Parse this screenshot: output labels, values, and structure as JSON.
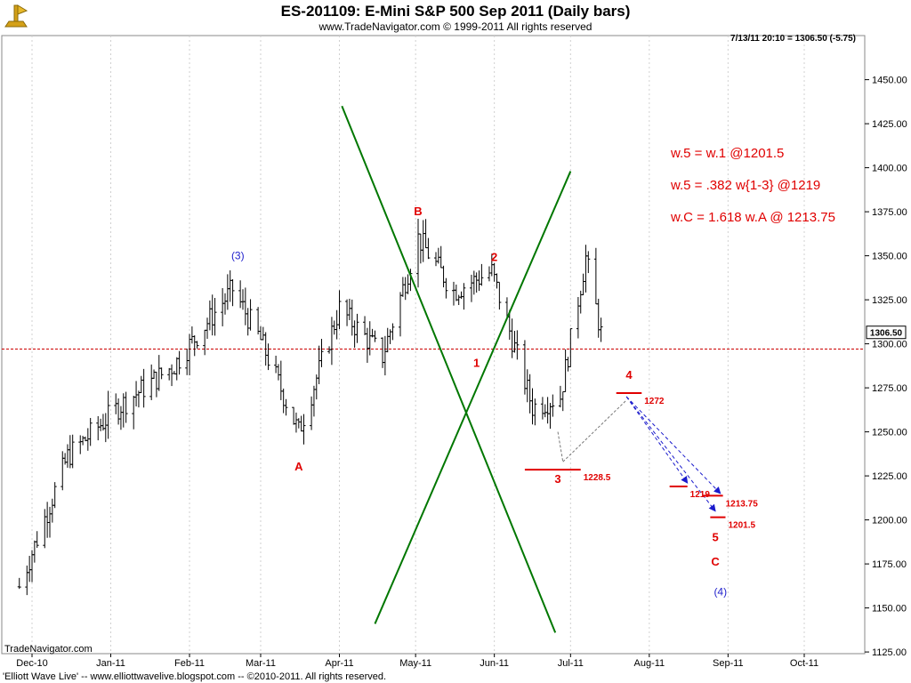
{
  "header": {
    "title": "ES-201109:  E-Mini S&P 500 Sep 2011  (Daily bars)",
    "copyright": "www.TradeNavigator.com © 1999-2011 All rights reserved",
    "readout": "7/13/11 20:10 = 1306.50 (-5.75)"
  },
  "footer": {
    "brand": "TradeNavigator.com",
    "credit": "'Elliott Wave Live' -- www.elliottwavelive.blogspot.com -- ©2010-2011. All rights reserved."
  },
  "colors": {
    "red": "#e00000",
    "green": "#007700",
    "blue": "#1a1acc",
    "bars": "#000000"
  },
  "chart_data": {
    "type": "bar",
    "title": "ES-201109:  E-Mini S&P 500 Sep 2011  (Daily bars)",
    "ylim": [
      1110,
      1460
    ],
    "y_ticks": [
      1125,
      1150,
      1175,
      1200,
      1225,
      1250,
      1275,
      1300,
      1325,
      1350,
      1375,
      1400,
      1425,
      1450
    ],
    "y_tick_labels": [
      "1125.00",
      "1150.00",
      "1175.00",
      "1200.00",
      "1225.00",
      "1250.00",
      "1275.00",
      "1300.00",
      "1325.00",
      "1350.00",
      "1375.00",
      "1400.00",
      "1425.00",
      "1450.00"
    ],
    "x_ticks": [
      {
        "label": "Dec-10",
        "date": "2010-12-01"
      },
      {
        "label": "Jan-11",
        "date": "2011-01-01"
      },
      {
        "label": "Feb-11",
        "date": "2011-02-01"
      },
      {
        "label": "Mar-11",
        "date": "2011-03-01"
      },
      {
        "label": "Apr-11",
        "date": "2011-04-01"
      },
      {
        "label": "May-11",
        "date": "2011-05-01"
      },
      {
        "label": "Jun-11",
        "date": "2011-06-01"
      },
      {
        "label": "Jul-11",
        "date": "2011-07-01"
      },
      {
        "label": "Aug-11",
        "date": "2011-08-01"
      },
      {
        "label": "Sep-11",
        "date": "2011-09-01"
      },
      {
        "label": "Oct-11",
        "date": "2011-10-01"
      }
    ],
    "last_price": 1306.5,
    "last_price_label": "1306.50",
    "ref_line": 1297,
    "anchors": [
      {
        "date": "2010-11-26",
        "price": 1162
      },
      {
        "date": "2010-12-15",
        "price": 1236
      },
      {
        "date": "2011-01-04",
        "price": 1264
      },
      {
        "date": "2011-01-26",
        "price": 1288
      },
      {
        "date": "2011-02-18",
        "price": 1331
      },
      {
        "date": "2011-03-01",
        "price": 1302
      },
      {
        "date": "2011-03-16",
        "price": 1250
      },
      {
        "date": "2011-04-01",
        "price": 1320
      },
      {
        "date": "2011-04-18",
        "price": 1293
      },
      {
        "date": "2011-05-02",
        "price": 1360
      },
      {
        "date": "2011-05-16",
        "price": 1330
      },
      {
        "date": "2011-05-31",
        "price": 1341
      },
      {
        "date": "2011-06-16",
        "price": 1264
      },
      {
        "date": "2011-06-27",
        "price": 1270
      },
      {
        "date": "2011-07-07",
        "price": 1349
      },
      {
        "date": "2011-07-13",
        "price": 1306
      }
    ],
    "wave_labels": [
      {
        "text": "(3)",
        "date": "2011-02-20",
        "price": 1348,
        "color": "blue"
      },
      {
        "text": "A",
        "date": "2011-03-16",
        "price": 1228,
        "color": "red"
      },
      {
        "text": "B",
        "date": "2011-05-02",
        "price": 1373,
        "color": "red"
      },
      {
        "text": "1",
        "date": "2011-05-25",
        "price": 1287,
        "color": "red"
      },
      {
        "text": "2",
        "date": "2011-06-01",
        "price": 1347,
        "color": "red"
      },
      {
        "text": "3",
        "date": "2011-06-26",
        "price": 1221,
        "color": "red"
      },
      {
        "text": "4",
        "date": "2011-07-24",
        "price": 1280,
        "color": "red"
      },
      {
        "text": "5",
        "date": "2011-08-27",
        "price": 1188,
        "color": "red"
      },
      {
        "text": "C",
        "date": "2011-08-27",
        "price": 1174,
        "color": "red"
      },
      {
        "text": "(4)",
        "date": "2011-08-29",
        "price": 1157,
        "color": "blue"
      }
    ],
    "levels": [
      {
        "label": "1228.5",
        "value": 1228.5,
        "start": "2011-06-13",
        "end": "2011-07-05"
      },
      {
        "label": "1272",
        "value": 1272,
        "start": "2011-07-19",
        "end": "2011-07-29"
      },
      {
        "label": "1219",
        "value": 1219,
        "start": "2011-08-09",
        "end": "2011-08-16"
      },
      {
        "label": "1213.75",
        "value": 1213.75,
        "start": "2011-08-22",
        "end": "2011-08-30"
      },
      {
        "label": "1201.5",
        "value": 1201.5,
        "start": "2011-08-25",
        "end": "2011-08-31"
      }
    ],
    "green_lines": [
      {
        "from": {
          "date": "2011-04-02",
          "price": 1435
        },
        "to": {
          "date": "2011-06-25",
          "price": 1136
        }
      },
      {
        "from": {
          "date": "2011-04-15",
          "price": 1141
        },
        "to": {
          "date": "2011-07-01",
          "price": 1398
        }
      }
    ],
    "projection_path": [
      {
        "date": "2011-06-28",
        "price": 1233
      },
      {
        "date": "2011-07-23",
        "price": 1268
      }
    ],
    "projection_arrows": [
      {
        "from": {
          "date": "2011-07-23",
          "price": 1270
        },
        "to": {
          "date": "2011-08-16",
          "price": 1221
        }
      },
      {
        "from": {
          "date": "2011-07-23",
          "price": 1270
        },
        "to": {
          "date": "2011-08-27",
          "price": 1205
        }
      },
      {
        "from": {
          "date": "2011-07-23",
          "price": 1270
        },
        "to": {
          "date": "2011-08-29",
          "price": 1215
        }
      }
    ],
    "notes": [
      "w.5 = w.1 @1201.5",
      "w.5 = .382 w{1-3} @1219",
      "w.C = 1.618 w.A @ 1213.75"
    ]
  }
}
